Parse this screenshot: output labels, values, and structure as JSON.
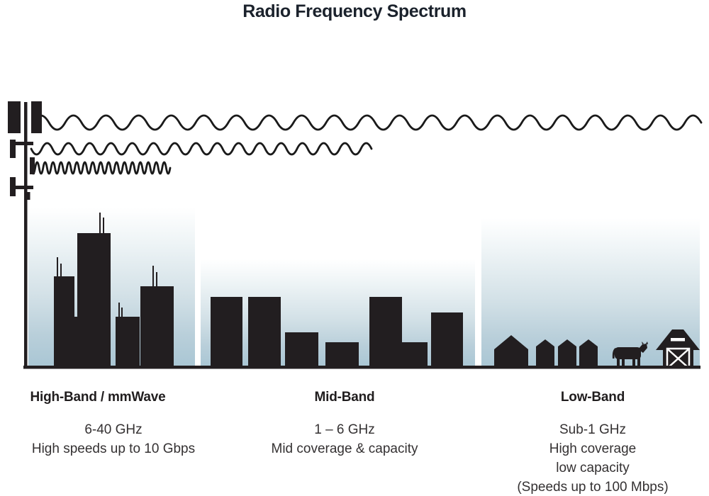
{
  "title": "Radio Frequency Spectrum",
  "bands": [
    {
      "id": "high-band",
      "heading": "High-Band / mmWave",
      "lines": [
        "6-40 GHz",
        "High speeds up to 10 Gbps"
      ],
      "scene": "city-skyscrapers-with-antennas"
    },
    {
      "id": "mid-band",
      "heading": "Mid-Band",
      "lines": [
        "1 – 6 GHz",
        "Mid coverage & capacity"
      ],
      "scene": "suburban-mid-rise-buildings"
    },
    {
      "id": "low-band",
      "heading": "Low-Band",
      "lines": [
        "Sub-1 GHz",
        "High coverage",
        "low capacity",
        "(Speeds up to 100 Mbps)"
      ],
      "scene": "rural-houses-cow-barn"
    }
  ],
  "icons": {
    "tower": "cell-tower-icon",
    "wave_long": "low-frequency-long-wavelength-wave",
    "wave_medium": "mid-frequency-medium-wavelength-wave",
    "wave_short": "high-frequency-short-wavelength-wave"
  },
  "colors": {
    "silhouette": "#221e20",
    "sky_bottom": "#a9c6d4",
    "wave_stroke": "#1a1a1a",
    "title_text": "#1b222c",
    "body_text": "#343132"
  }
}
